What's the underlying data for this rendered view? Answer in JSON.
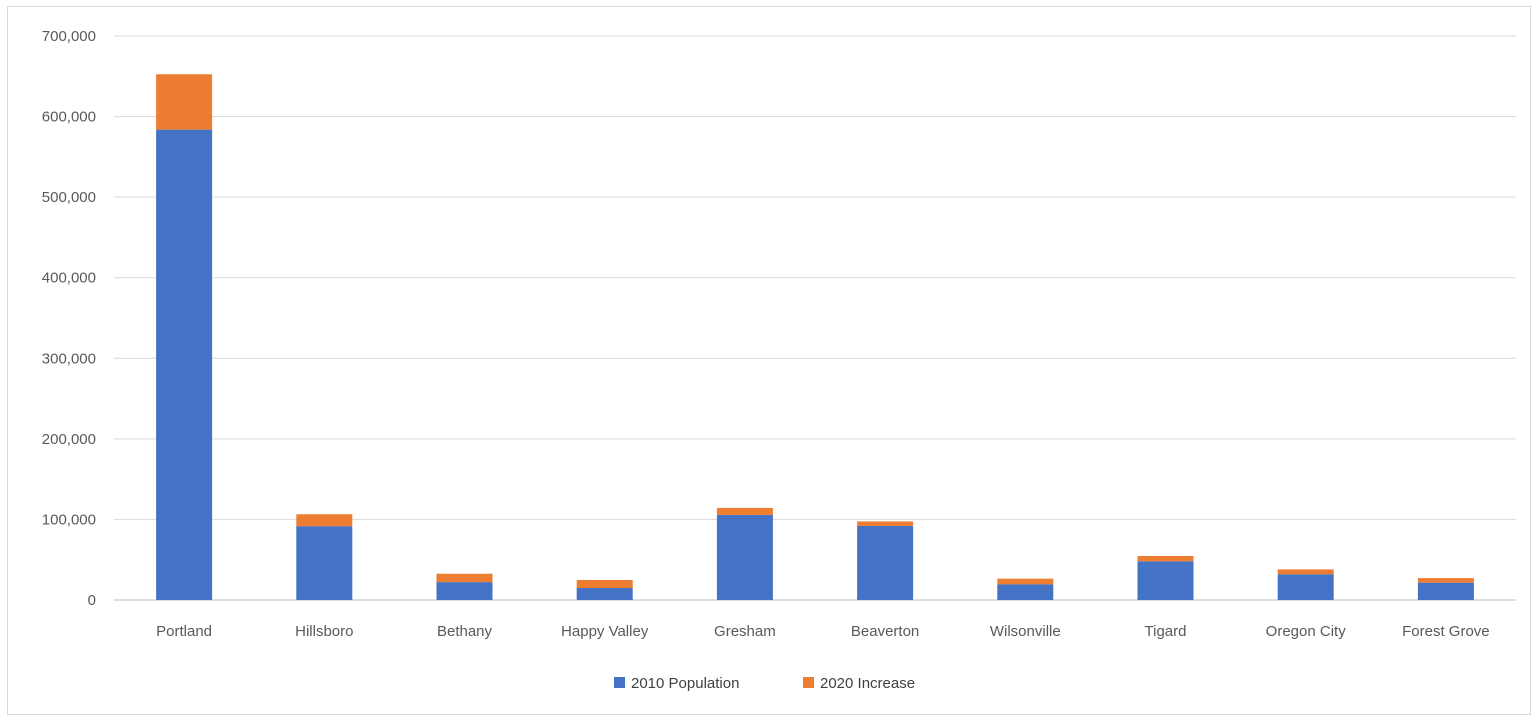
{
  "chart_data": {
    "type": "bar",
    "stacked": true,
    "categories": [
      "Portland",
      "Hillsboro",
      "Bethany",
      "Happy Valley",
      "Gresham",
      "Beaverton",
      "Wilsonville",
      "Tigard",
      "Oregon City",
      "Forest Grove"
    ],
    "series": [
      {
        "name": "2010 Population",
        "color": "#4472c4",
        "values": [
          583800,
          91600,
          22200,
          14900,
          105600,
          91900,
          19500,
          48000,
          31900,
          21500
        ]
      },
      {
        "name": "2020 Increase",
        "color": "#ed7d31",
        "values": [
          68700,
          14800,
          10400,
          9900,
          8700,
          5600,
          7000,
          6600,
          6100,
          5700
        ]
      }
    ],
    "yticks": [
      "0",
      "100,000",
      "200,000",
      "300,000",
      "400,000",
      "500,000",
      "600,000",
      "700,000"
    ],
    "ylim": [
      0,
      700000
    ],
    "grid": true,
    "legend_position": "bottom",
    "title": "",
    "xlabel": "",
    "ylabel": ""
  }
}
